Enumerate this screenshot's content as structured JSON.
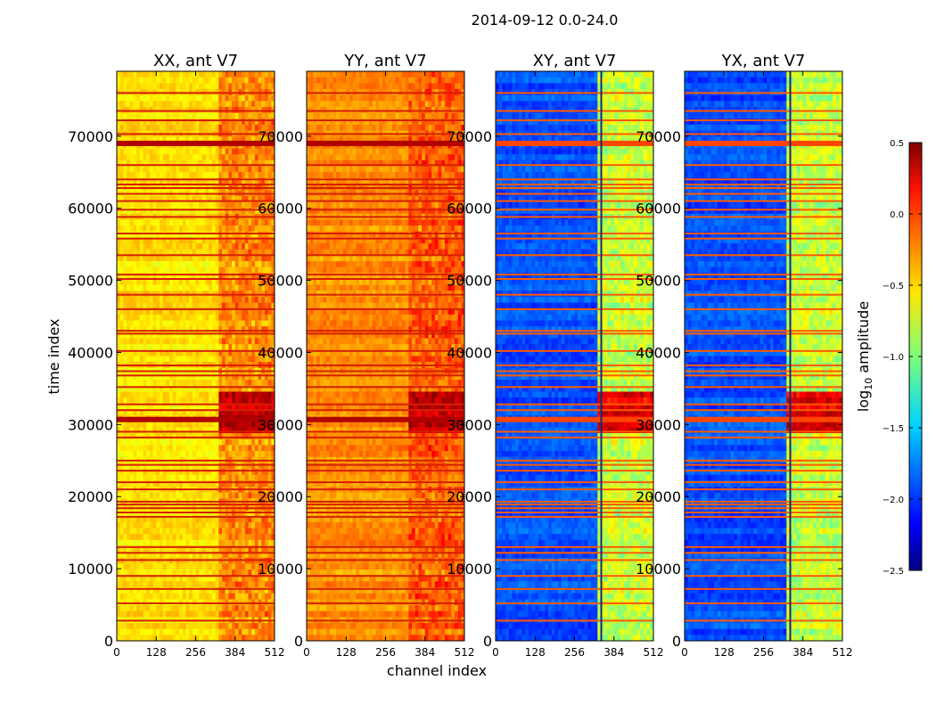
{
  "figure": {
    "suptitle": "2014-09-12 0.0-24.0"
  },
  "chart_data": {
    "type": "heatmap",
    "shared": {
      "xlabel": "channel index",
      "ylabel": "time index",
      "xlim": [
        0,
        512
      ],
      "ylim": [
        0,
        79000
      ],
      "xticks": [
        0,
        128,
        256,
        384,
        512
      ],
      "yticks": [
        0,
        10000,
        20000,
        30000,
        40000,
        50000,
        60000,
        70000
      ],
      "colorbar": {
        "label": "log10 amplitude",
        "label_base": "log",
        "label_sub": "10",
        "label_rest": " amplitude",
        "range": [
          -2.5,
          0.5
        ],
        "ticks": [
          0.5,
          0.0,
          -0.5,
          -1.0,
          -1.5,
          -2.0,
          -2.5
        ],
        "tick_labels": [
          "0.5",
          "0.0",
          "−0.5",
          "−1.0",
          "−1.5",
          "−2.0",
          "−2.5"
        ],
        "colormap": "jet"
      },
      "flagged_time_rows": [
        2800,
        5200,
        7200,
        9000,
        11200,
        12200,
        13000,
        17200,
        17800,
        18400,
        18900,
        19300,
        21000,
        22000,
        23600,
        24400,
        25000,
        28200,
        29000,
        30700,
        32000,
        32800,
        35200,
        36800,
        37400,
        38200,
        40200,
        42600,
        43000,
        46000,
        48000,
        50200,
        50800,
        53500,
        55800,
        56500,
        58800,
        59800,
        61000,
        62000,
        62800,
        63300,
        64000,
        66000,
        69000,
        70300,
        72200,
        73500,
        76000
      ],
      "time_features": [
        {
          "t": 30700,
          "note": "broadband RFI event"
        },
        {
          "t": 69000,
          "note": "broadband flagged band"
        }
      ]
    },
    "panels": [
      {
        "title": "XX, ant V7",
        "product": "XX",
        "baseline_log_amp": -0.55,
        "high_channel_log_amp": -0.3,
        "strong_event_log_amp": 0.4
      },
      {
        "title": "YY, ant V7",
        "product": "YY",
        "baseline_log_amp": -0.3,
        "high_channel_log_amp": -0.15,
        "strong_event_log_amp": 0.4
      },
      {
        "title": "XY, ant V7",
        "product": "XY",
        "baseline_log_amp": -1.9,
        "high_channel_log_amp": -0.8,
        "strong_event_log_amp": 0.3
      },
      {
        "title": "YX, ant V7",
        "product": "YX",
        "baseline_log_amp": -1.9,
        "high_channel_log_amp": -0.8,
        "strong_event_log_amp": 0.3
      }
    ]
  }
}
